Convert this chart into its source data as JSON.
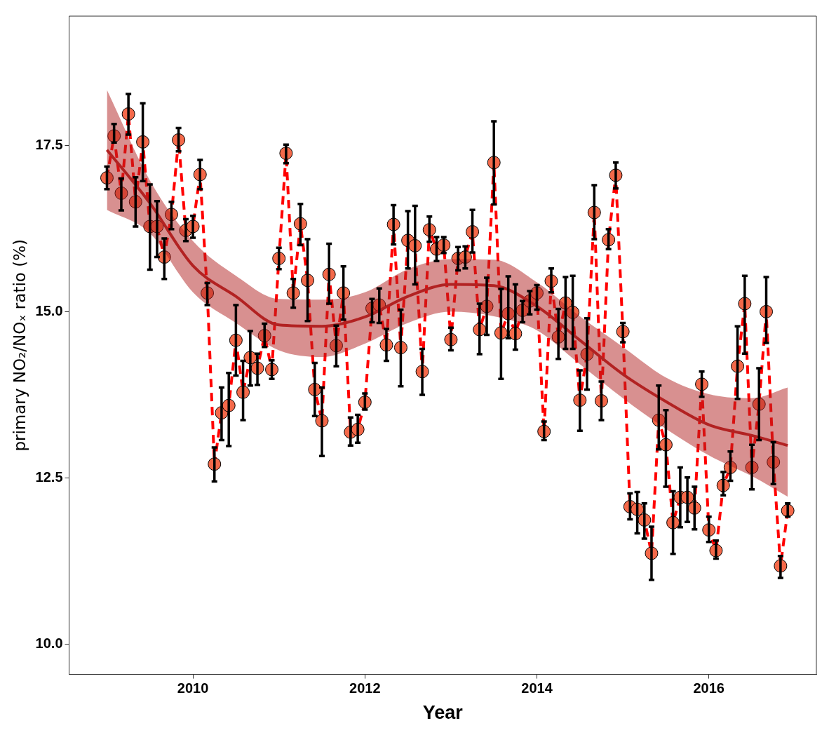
{
  "chart_data": {
    "type": "scatter",
    "xlabel": "Year",
    "ylabel": "primary NO₂/NOₓ ratio (%)",
    "xlim": [
      2008.56,
      2017.25
    ],
    "ylim": [
      9.55,
      19.44
    ],
    "xticks": [
      2010,
      2012,
      2014,
      2016
    ],
    "yticks": [
      {
        "value": 10,
        "label": "10.0"
      },
      {
        "value": 12.5,
        "label": "12.5"
      },
      {
        "value": 15,
        "label": "15.0"
      },
      {
        "value": 17.5,
        "label": "17.5"
      }
    ],
    "grid": false,
    "legend": false,
    "x": [
      2009,
      2009.083,
      2009.167,
      2009.25,
      2009.333,
      2009.417,
      2009.5,
      2009.583,
      2009.667,
      2009.75,
      2009.833,
      2009.917,
      2010,
      2010.083,
      2010.167,
      2010.25,
      2010.333,
      2010.417,
      2010.5,
      2010.583,
      2010.667,
      2010.75,
      2010.833,
      2010.917,
      2011,
      2011.083,
      2011.167,
      2011.25,
      2011.333,
      2011.417,
      2011.5,
      2011.583,
      2011.667,
      2011.75,
      2011.833,
      2011.917,
      2012,
      2012.083,
      2012.167,
      2012.25,
      2012.333,
      2012.417,
      2012.5,
      2012.583,
      2012.667,
      2012.75,
      2012.833,
      2012.917,
      2013,
      2013.083,
      2013.167,
      2013.25,
      2013.333,
      2013.417,
      2013.5,
      2013.583,
      2013.667,
      2013.75,
      2013.833,
      2013.917,
      2014,
      2014.083,
      2014.167,
      2014.25,
      2014.333,
      2014.417,
      2014.5,
      2014.583,
      2014.667,
      2014.75,
      2014.833,
      2014.917,
      2015,
      2015.083,
      2015.167,
      2015.25,
      2015.333,
      2015.417,
      2015.5,
      2015.583,
      2015.667,
      2015.75,
      2015.833,
      2015.917,
      2016,
      2016.083,
      2016.167,
      2016.25,
      2016.333,
      2016.417,
      2016.5,
      2016.583,
      2016.667,
      2016.75,
      2016.833,
      2016.917
    ],
    "series": [
      {
        "type": "line",
        "color": "#ff0000",
        "line_style": "dashed",
        "marker": "none",
        "values": [
          17.01,
          17.64,
          16.78,
          17.97,
          16.65,
          17.55,
          16.28,
          16.28,
          15.82,
          16.46,
          17.58,
          16.22,
          16.28,
          17.06,
          15.28,
          12.71,
          13.48,
          13.59,
          14.57,
          13.79,
          14.31,
          14.15,
          14.64,
          14.13,
          15.8,
          17.38,
          15.28,
          16.32,
          15.47,
          13.83,
          13.36,
          15.56,
          14.49,
          15.28,
          13.19,
          13.23,
          13.64,
          15.05,
          15.1,
          14.5,
          16.31,
          14.46,
          16.07,
          15.99,
          14.1,
          16.23,
          15.94,
          16,
          14.58,
          15.8,
          15.82,
          16.2,
          14.73,
          15.08,
          17.24,
          14.68,
          14.97,
          14.67,
          15.02,
          15.16,
          15.28,
          13.2,
          15.46,
          14.62,
          15.13,
          14.99,
          13.67,
          14.36,
          16.49,
          13.66,
          16.08,
          17.05,
          14.7,
          12.07,
          12.03,
          11.87,
          11.37,
          13.37,
          13,
          11.83,
          12.21,
          12.21,
          12.05,
          13.91,
          11.72,
          11.41,
          12.39,
          12.66,
          14.18,
          15.12,
          12.66,
          13.61,
          15,
          12.74,
          11.18,
          12.01
        ]
      },
      {
        "type": "scatter",
        "color": "#f4694a",
        "marker": "circle",
        "values": [
          17.01,
          17.64,
          16.78,
          17.97,
          16.65,
          17.55,
          16.28,
          16.28,
          15.82,
          16.46,
          17.58,
          16.22,
          16.28,
          17.06,
          15.28,
          12.71,
          13.48,
          13.59,
          14.57,
          13.79,
          14.31,
          14.15,
          14.64,
          14.13,
          15.8,
          17.38,
          15.28,
          16.32,
          15.47,
          13.83,
          13.36,
          15.56,
          14.49,
          15.28,
          13.19,
          13.23,
          13.64,
          15.05,
          15.1,
          14.5,
          16.31,
          14.46,
          16.07,
          15.99,
          14.1,
          16.23,
          15.94,
          16,
          14.58,
          15.8,
          15.82,
          16.2,
          14.73,
          15.08,
          17.24,
          14.68,
          14.97,
          14.67,
          15.02,
          15.16,
          15.28,
          13.2,
          15.46,
          14.62,
          15.13,
          14.99,
          13.67,
          14.36,
          16.49,
          13.66,
          16.08,
          17.05,
          14.7,
          12.07,
          12.03,
          11.87,
          11.37,
          13.37,
          13,
          11.83,
          12.21,
          12.21,
          12.05,
          13.91,
          11.72,
          11.41,
          12.39,
          12.66,
          14.18,
          15.12,
          12.66,
          13.61,
          15,
          12.74,
          11.18,
          12.01
        ],
        "errors": [
          [
            16.84,
            17.18
          ],
          [
            17.54,
            17.82
          ],
          [
            16.52,
            17.0
          ],
          [
            17.66,
            18.27
          ],
          [
            16.28,
            17.02
          ],
          [
            16.96,
            18.13
          ],
          [
            15.63,
            16.91
          ],
          [
            15.82,
            16.66
          ],
          [
            15.49,
            16.1
          ],
          [
            16.24,
            16.65
          ],
          [
            17.41,
            17.76
          ],
          [
            16.06,
            16.39
          ],
          [
            16.11,
            16.44
          ],
          [
            16.84,
            17.28
          ],
          [
            15.1,
            15.43
          ],
          [
            12.45,
            12.96
          ],
          [
            13.07,
            13.86
          ],
          [
            12.98,
            14.08
          ],
          [
            14.04,
            15.1
          ],
          [
            13.37,
            14.26
          ],
          [
            13.89,
            14.71
          ],
          [
            13.9,
            14.37
          ],
          [
            14.47,
            14.82
          ],
          [
            13.99,
            14.27
          ],
          [
            15.64,
            15.96
          ],
          [
            17.23,
            17.51
          ],
          [
            15.06,
            15.49
          ],
          [
            16.0,
            16.62
          ],
          [
            14.86,
            16.09
          ],
          [
            13.43,
            14.23
          ],
          [
            12.83,
            13.86
          ],
          [
            15.12,
            16.02
          ],
          [
            14.18,
            14.79
          ],
          [
            14.88,
            15.68
          ],
          [
            12.99,
            13.41
          ],
          [
            13.03,
            13.45
          ],
          [
            13.53,
            13.77
          ],
          [
            14.84,
            15.19
          ],
          [
            14.83,
            15.35
          ],
          [
            14.26,
            14.74
          ],
          [
            16.01,
            16.6
          ],
          [
            13.88,
            15.03
          ],
          [
            15.65,
            16.51
          ],
          [
            15.41,
            16.59
          ],
          [
            13.75,
            14.44
          ],
          [
            16.05,
            16.43
          ],
          [
            15.76,
            16.12
          ],
          [
            15.88,
            16.12
          ],
          [
            14.42,
            14.76
          ],
          [
            15.62,
            15.97
          ],
          [
            15.65,
            15.98
          ],
          [
            15.89,
            16.53
          ],
          [
            14.36,
            15.12
          ],
          [
            14.65,
            15.51
          ],
          [
            16.61,
            17.86
          ],
          [
            13.99,
            15.34
          ],
          [
            14.6,
            15.53
          ],
          [
            14.43,
            15.41
          ],
          [
            14.84,
            15.16
          ],
          [
            14.96,
            15.31
          ],
          [
            15.03,
            15.4
          ],
          [
            13.07,
            13.35
          ],
          [
            15.29,
            15.65
          ],
          [
            14.29,
            15.04
          ],
          [
            14.44,
            15.52
          ],
          [
            14.44,
            15.54
          ],
          [
            13.21,
            14.12
          ],
          [
            13.83,
            14.9
          ],
          [
            16.09,
            16.9
          ],
          [
            13.37,
            13.95
          ],
          [
            15.94,
            16.24
          ],
          [
            16.85,
            17.24
          ],
          [
            14.54,
            14.83
          ],
          [
            11.88,
            12.27
          ],
          [
            11.67,
            12.29
          ],
          [
            11.59,
            12.12
          ],
          [
            10.97,
            11.77
          ],
          [
            12.93,
            13.89
          ],
          [
            12.37,
            13.52
          ],
          [
            11.36,
            12.3
          ],
          [
            11.76,
            12.66
          ],
          [
            11.84,
            12.51
          ],
          [
            11.73,
            12.37
          ],
          [
            13.72,
            14.1
          ],
          [
            11.54,
            11.92
          ],
          [
            11.29,
            11.56
          ],
          [
            12.24,
            12.59
          ],
          [
            12.46,
            12.9
          ],
          [
            13.69,
            14.78
          ],
          [
            14.37,
            15.54
          ],
          [
            12.33,
            13.0
          ],
          [
            13.07,
            14.15
          ],
          [
            14.53,
            15.52
          ],
          [
            12.41,
            13.04
          ],
          [
            11.0,
            11.33
          ],
          [
            11.92,
            12.12
          ]
        ]
      },
      {
        "type": "line",
        "color": "#b22222",
        "line_style": "solid",
        "marker": "none",
        "x": [
          2009,
          2009.5,
          2010,
          2010.5,
          2011,
          2011.5,
          2012,
          2012.5,
          2013,
          2013.5,
          2014,
          2014.5,
          2015,
          2015.5,
          2016,
          2016.5,
          2016.917
        ],
        "values": [
          17.43,
          16.63,
          15.69,
          15.23,
          14.8,
          14.78,
          14.92,
          15.23,
          15.41,
          15.39,
          15.08,
          14.57,
          14.06,
          13.65,
          13.3,
          13.14,
          12.99
        ],
        "lower": [
          16.53,
          16.18,
          15.29,
          14.83,
          14.42,
          14.32,
          14.52,
          14.83,
          15.0,
          14.93,
          14.72,
          14.21,
          13.7,
          13.24,
          12.84,
          12.53,
          12.22
        ],
        "upper": [
          18.33,
          16.97,
          16.06,
          15.54,
          15.19,
          15.18,
          15.29,
          15.64,
          15.79,
          15.78,
          15.44,
          14.93,
          14.47,
          14.01,
          13.76,
          13.7,
          13.86
        ]
      }
    ]
  }
}
